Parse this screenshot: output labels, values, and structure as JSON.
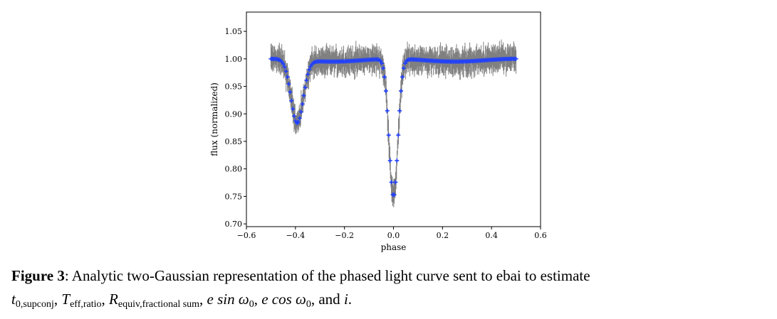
{
  "chart_data": {
    "type": "scatter",
    "xlabel": "phase",
    "ylabel": "flux (normalized)",
    "xlim": [
      -0.6,
      0.6
    ],
    "ylim": [
      0.695,
      1.085
    ],
    "xticks": [
      -0.6,
      -0.4,
      -0.2,
      0.0,
      0.2,
      0.4,
      0.6
    ],
    "xtick_labels": [
      "−0.6",
      "−0.4",
      "−0.2",
      "0.0",
      "0.2",
      "0.4",
      "0.6"
    ],
    "yticks": [
      0.7,
      0.75,
      0.8,
      0.85,
      0.9,
      0.95,
      1.0,
      1.05
    ],
    "ytick_labels": [
      "0.70",
      "0.75",
      "0.80",
      "0.85",
      "0.90",
      "0.95",
      "1.00",
      "1.05"
    ],
    "grid": false,
    "legend": "none",
    "series": [
      {
        "kind": "observed flux with errorbars",
        "color": "#808080",
        "phase_range": [
          -0.5,
          0.5
        ]
      },
      {
        "kind": "analytic two-Gaussian model",
        "color": "#1f3fff"
      }
    ],
    "model": {
      "baseline": 1.0,
      "ellipsoidal_amplitude": 0.005,
      "gaussians": [
        {
          "phase": 0.0,
          "depth": 0.25,
          "sigma": 0.018
        },
        {
          "phase": -0.393,
          "depth": 0.115,
          "sigma": 0.025
        }
      ]
    }
  },
  "caption": {
    "label": "Figure 3",
    "text_1": ": Analytic two-Gaussian representation of the phased light curve sent to ebai to estimate",
    "t_sym": "t",
    "t_sub": "0,supconj",
    "teff_sym": "T",
    "teff_sub": "eff,ratio",
    "r_sym": "R",
    "r_sub": "equiv,fractional sum",
    "esin": "e sin ω",
    "esin_sub": "0",
    "ecos": "e cos ω",
    "ecos_sub": "0",
    "and_text": ", and",
    "incl": "i",
    "end": "."
  }
}
